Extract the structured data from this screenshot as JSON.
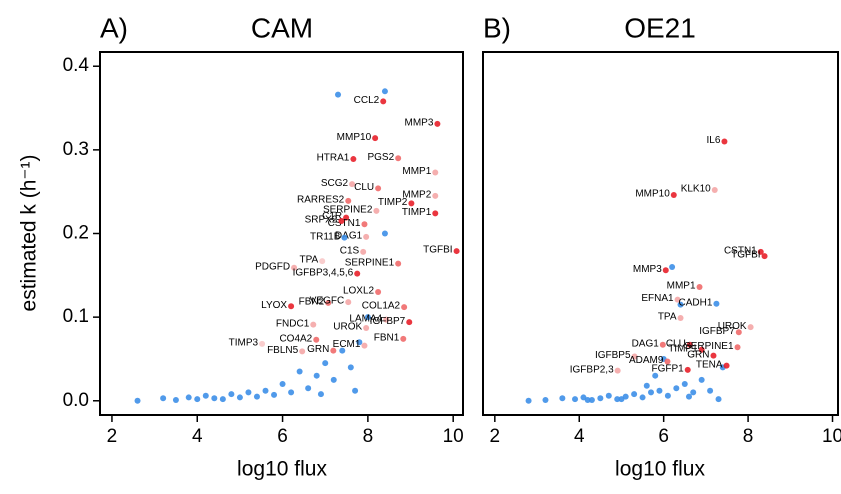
{
  "chart_data": [
    {
      "type": "scatter",
      "panel_label": "A)",
      "title": "CAM",
      "xlabel": "log10 flux",
      "ylabel": "estimated k (h⁻¹)",
      "xlim": [
        1.72,
        10.23
      ],
      "ylim": [
        -0.017,
        0.417
      ],
      "xticks": [
        2,
        4,
        6,
        8,
        10
      ],
      "yticks": [
        {
          "value": 0,
          "label": "0.0"
        },
        0.1,
        0.2,
        0.3,
        0.4
      ],
      "series": [
        {
          "color": "#3d8fe8",
          "x": [
            2.6,
            3.2,
            3.5,
            3.8,
            4.0,
            4.2,
            4.4,
            4.6,
            4.8,
            5.0,
            5.2,
            5.4,
            5.6,
            5.8,
            6.0,
            6.2,
            6.4,
            6.6,
            6.8,
            7.0,
            7.2,
            7.4,
            7.6,
            7.8,
            8.0,
            8.4,
            7.3,
            8.4,
            6.9,
            7.7
          ],
          "values": [
            0,
            0.003,
            0.001,
            0.004,
            0.002,
            0.006,
            0.003,
            0.002,
            0.008,
            0.004,
            0.01,
            0.005,
            0.012,
            0.007,
            0.02,
            0.01,
            0.035,
            0.015,
            0.03,
            0.045,
            0.025,
            0.06,
            0.04,
            0.07,
            0.1,
            0.37,
            0.366,
            0.2,
            0.008,
            0.012
          ]
        },
        {
          "labels": [
            "CCL2",
            "MMP3",
            "MMP10",
            "PGS2",
            "HTRA1",
            "MMP1",
            "SCG2",
            "CLU",
            "MMP2",
            "RARRES2",
            "TIMP2",
            "SERPINE2",
            "C1R",
            "CSTN1",
            "TIMP1",
            "SRPX2",
            "DAG1",
            "TR11B",
            "TGFBI",
            "C1S",
            "TPA",
            "SERPINE1",
            "PDGFD",
            "IGFBP3,4,5,6",
            "LYOX",
            "LOXL2",
            "FBN2",
            "VEGFC",
            "COL1A2",
            "LAMA4",
            "FNDC1",
            "IGFBP7",
            "UROK",
            "FBN1",
            "TIMP3",
            "CO4A2",
            "ECM1",
            "GRN",
            "FBLN5"
          ],
          "x": [
            8.36,
            9.63,
            8.17,
            8.71,
            7.66,
            9.58,
            7.63,
            8.24,
            9.58,
            7.54,
            9.02,
            8.2,
            7.49,
            7.92,
            9.58,
            7.38,
            7.96,
            7.45,
            10.08,
            7.89,
            6.93,
            8.71,
            6.27,
            7.75,
            6.2,
            8.24,
            7.07,
            7.54,
            8.85,
            8.43,
            6.72,
            8.97,
            7.96,
            8.83,
            5.52,
            6.79,
            7.92,
            7.19,
            6.46
          ],
          "values": [
            0.358,
            0.331,
            0.314,
            0.29,
            0.289,
            0.273,
            0.259,
            0.254,
            0.245,
            0.239,
            0.236,
            0.227,
            0.219,
            0.211,
            0.224,
            0.215,
            0.196,
            0.195,
            0.179,
            0.178,
            0.167,
            0.164,
            0.159,
            0.152,
            0.113,
            0.13,
            0.117,
            0.118,
            0.112,
            0.097,
            0.091,
            0.094,
            0.087,
            0.074,
            0.068,
            0.073,
            0.066,
            0.06,
            0.059
          ],
          "colors": [
            "#e8202a",
            "#e8202a",
            "#e8202a",
            "#ef6a6a",
            "#e8202a",
            "#f4a6a6",
            "#f4a6a6",
            "#ef6a6a",
            "#f4a6a6",
            "#ef6a6a",
            "#e8202a",
            "#f4a6a6",
            "#e8202a",
            "#ef6a6a",
            "#e8202a",
            "#e8202a",
            "#f4a6a6",
            "#3d8fe8",
            "#e8202a",
            "#f4a6a6",
            "#f8c8c8",
            "#ef6a6a",
            "#f4a6a6",
            "#e8202a",
            "#e8202a",
            "#ef6a6a",
            "#ef6a6a",
            "#f4a6a6",
            "#ef6a6a",
            "#f4a6a6",
            "#f4a6a6",
            "#e8202a",
            "#f4a6a6",
            "#ef6a6a",
            "#f8c8c8",
            "#ef6a6a",
            "#f4a6a6",
            "#ef6a6a",
            "#f4a6a6"
          ]
        }
      ]
    },
    {
      "type": "scatter",
      "panel_label": "B)",
      "title": "OE21",
      "xlabel": "log10 flux",
      "xlim": [
        1.72,
        10.13
      ],
      "ylim": [
        -0.017,
        0.417
      ],
      "xticks": [
        2,
        4,
        6,
        8,
        10
      ],
      "series": [
        {
          "color": "#3d8fe8",
          "x": [
            2.8,
            3.2,
            3.6,
            3.9,
            4.1,
            4.3,
            4.5,
            4.7,
            4.9,
            5.1,
            5.3,
            5.5,
            5.7,
            5.9,
            6.1,
            6.3,
            6.5,
            6.7,
            6.9,
            7.1,
            4.2,
            5.0,
            5.8,
            6.6,
            6.2,
            6.4,
            6.0,
            7.3,
            7.4,
            5.6
          ],
          "values": [
            0,
            0.001,
            0.003,
            0.002,
            0.004,
            0.001,
            0.003,
            0.006,
            0.002,
            0.005,
            0.008,
            0.004,
            0.01,
            0.012,
            0.006,
            0.015,
            0.02,
            0.01,
            0.025,
            0.012,
            0.001,
            0.002,
            0.03,
            0.005,
            0.16,
            0.115,
            0.05,
            0.002,
            0.04,
            0.018
          ]
        },
        {
          "labels": [
            "IL6",
            "KLK10",
            "MMP10",
            "CSTN1",
            "TGFBI",
            "MMP3",
            "MMP1",
            "EFNA1",
            "CADH1",
            "TPA",
            "UROK",
            "IGFBP7",
            "DAG1",
            "CLU",
            "TIMP1",
            "SERPINE1",
            "IGFBP5",
            "GRN",
            "ADAM9",
            "TENA",
            "IGFBP2,3",
            "FGFP1"
          ],
          "x": [
            7.44,
            7.21,
            6.24,
            8.3,
            8.39,
            6.05,
            6.85,
            6.33,
            7.25,
            6.4,
            8.06,
            7.78,
            5.98,
            6.62,
            6.9,
            7.75,
            5.31,
            7.18,
            6.09,
            7.49,
            4.91,
            6.57
          ],
          "values": [
            0.31,
            0.252,
            0.246,
            0.178,
            0.173,
            0.156,
            0.136,
            0.121,
            0.116,
            0.099,
            0.088,
            0.082,
            0.067,
            0.067,
            0.061,
            0.064,
            0.053,
            0.054,
            0.047,
            0.042,
            0.036,
            0.037
          ],
          "colors": [
            "#e8202a",
            "#f4a6a6",
            "#e8202a",
            "#e8202a",
            "#e8202a",
            "#e8202a",
            "#ef6a6a",
            "#f4a6a6",
            "#3d8fe8",
            "#f4a6a6",
            "#f4a6a6",
            "#ef6a6a",
            "#ef6a6a",
            "#e8202a",
            "#e8202a",
            "#ef6a6a",
            "#f4a6a6",
            "#e8202a",
            "#ef6a6a",
            "#e8202a",
            "#f4a6a6",
            "#e8202a"
          ]
        }
      ]
    }
  ]
}
